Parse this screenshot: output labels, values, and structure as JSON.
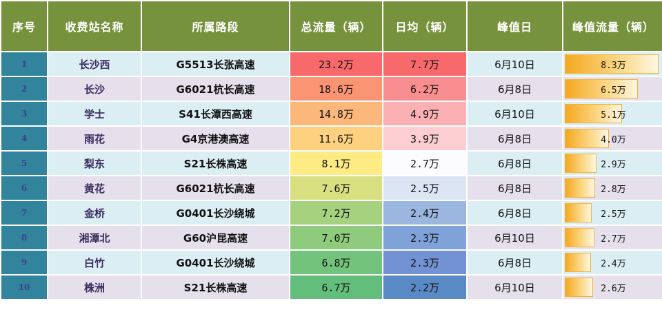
{
  "headers": {
    "idx": "序号",
    "station": "收费站名称",
    "road": "所属路段",
    "total": "总流量（辆）",
    "daily": "日均（辆）",
    "peak_day": "峰值日",
    "peak_flow": "峰值流量（辆）"
  },
  "colors": {
    "header_bg": "#77923c",
    "index_bg": "#31849b",
    "row_odd": "#dbeef4",
    "row_even": "#e5e0ec",
    "bar": "#f4a91f"
  },
  "rows": [
    {
      "idx": "1",
      "station": "长沙西",
      "road": "G5513长张高速",
      "total": "23.2万",
      "daily": "7.7万",
      "peak_day": "6月10日",
      "peak_flow": "8.3万",
      "peak_value": 8.3,
      "total_color": "#f8696b",
      "daily_color": "#f8696b"
    },
    {
      "idx": "2",
      "station": "长沙",
      "road": "G6021杭长高速",
      "total": "18.6万",
      "daily": "6.2万",
      "peak_day": "6月8日",
      "peak_flow": "6.5万",
      "peak_value": 6.5,
      "total_color": "#fa9473",
      "daily_color": "#f98e90"
    },
    {
      "idx": "3",
      "station": "学士",
      "road": "S41长潭西高速",
      "total": "14.8万",
      "daily": "4.9万",
      "peak_day": "6月10日",
      "peak_flow": "5.1万",
      "peak_value": 5.1,
      "total_color": "#fcb77a",
      "daily_color": "#fbb1b3"
    },
    {
      "idx": "4",
      "station": "雨花",
      "road": "G4京港澳高速",
      "total": "11.6万",
      "daily": "3.9万",
      "peak_day": "6月8日",
      "peak_flow": "4.0万",
      "peak_value": 4.0,
      "total_color": "#fdd17f",
      "daily_color": "#fcced2"
    },
    {
      "idx": "5",
      "station": "梨东",
      "road": "S21长株高速",
      "total": "8.1万",
      "daily": "2.7万",
      "peak_day": "6月8日",
      "peak_flow": "2.9万",
      "peak_value": 2.9,
      "total_color": "#ffeb84",
      "daily_color": "#fcfcff"
    },
    {
      "idx": "6",
      "station": "黄花",
      "road": "G6021杭长高速",
      "total": "7.6万",
      "daily": "2.5万",
      "peak_day": "6月8日",
      "peak_flow": "2.8万",
      "peak_value": 2.8,
      "total_color": "#d8df81",
      "daily_color": "#dce5f3"
    },
    {
      "idx": "7",
      "station": "金桥",
      "road": "G0401长沙绕城",
      "total": "7.2万",
      "daily": "2.4万",
      "peak_day": "6月8日",
      "peak_flow": "2.5万",
      "peak_value": 2.5,
      "total_color": "#a6d17e",
      "daily_color": "#9bb6df"
    },
    {
      "idx": "8",
      "station": "湘潭北",
      "road": "G60沪昆高速",
      "total": "7.0万",
      "daily": "2.3万",
      "peak_day": "6月10日",
      "peak_flow": "2.7万",
      "peak_value": 2.7,
      "total_color": "#8fcb7d",
      "daily_color": "#7fa2d8"
    },
    {
      "idx": "9",
      "station": "白竹",
      "road": "G0401长沙绕城",
      "total": "6.8万",
      "daily": "2.3万",
      "peak_day": "6月8日",
      "peak_flow": "2.4万",
      "peak_value": 2.4,
      "total_color": "#73c37c",
      "daily_color": "#7292d3"
    },
    {
      "idx": "10",
      "station": "株洲",
      "road": "S21长株高速",
      "total": "6.7万",
      "daily": "2.2万",
      "peak_day": "6月10日",
      "peak_flow": "2.6万",
      "peak_value": 2.6,
      "total_color": "#63be7b",
      "daily_color": "#5a8ac6"
    }
  ]
}
